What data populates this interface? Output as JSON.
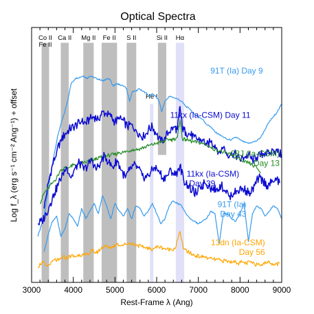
{
  "chart_data": {
    "type": "line",
    "title": "Optical Spectra",
    "xlabel": "Rest-Frame λ (Ang)",
    "ylabel": "Log f_λ (erg s⁻¹ cm⁻² Ang⁻¹) + offset",
    "xlim": [
      3000,
      9000
    ],
    "xticks": [
      "3000",
      "4000",
      "5000",
      "6000",
      "7000",
      "8000",
      "9000"
    ],
    "y_ticks_shown": false,
    "grid": false,
    "colors": {
      "sky": "#3399ee",
      "navy": "#0a0ad2",
      "green": "#228b22",
      "orange": "#ffa500",
      "grey_band": "#bebebe",
      "lavender_band": "#e0e0f8"
    },
    "bands": [
      {
        "label": "Co II",
        "label2": "Fe II",
        "x": [
          3240,
          3420
        ],
        "y_range": [
          0.0,
          0.94
        ],
        "color": "grey"
      },
      {
        "label": "Ca II",
        "x": [
          3700,
          3890
        ],
        "y_range": [
          0.0,
          0.94
        ],
        "color": "grey"
      },
      {
        "label": "Mg II",
        "x": [
          4240,
          4490
        ],
        "y_range": [
          0.0,
          0.94
        ],
        "color": "grey"
      },
      {
        "label": "Fe II",
        "x": [
          4680,
          5050
        ],
        "y_range": [
          0.0,
          0.94
        ],
        "color": "grey"
      },
      {
        "label": "S II",
        "x": [
          5280,
          5510
        ],
        "y_range": [
          0.0,
          0.94
        ],
        "color": "grey"
      },
      {
        "label": "He I",
        "x": [
          5840,
          5920
        ],
        "y_range": [
          0.0,
          0.7
        ],
        "color": "lavender"
      },
      {
        "label": "Si II",
        "x": [
          6030,
          6230
        ],
        "y_range": [
          0.5,
          0.94
        ],
        "color": "grey"
      },
      {
        "label": "Hα",
        "x": [
          6460,
          6660
        ],
        "y_range": [
          0.0,
          0.94
        ],
        "color": "lavender"
      }
    ],
    "series": [
      {
        "name": "91T (Ia) Day 9",
        "label_lines": [
          "91T (Ia) Day 9"
        ],
        "color": "sky",
        "x": [
          3150,
          3300,
          3380,
          3450,
          3550,
          3620,
          3700,
          3780,
          3860,
          3950,
          4050,
          4150,
          4250,
          4330,
          4400,
          4480,
          4560,
          4640,
          4720,
          4800,
          4880,
          4960,
          5040,
          5120,
          5200,
          5280,
          5350,
          5420,
          5500,
          5580,
          5660,
          5740,
          5820,
          5900,
          5980,
          6060,
          6120,
          6200,
          6300,
          6400,
          6500,
          6600,
          6700,
          6800,
          6900,
          7000,
          7100,
          7200,
          7300,
          7400,
          7500,
          7600,
          7700,
          7800,
          7900,
          8000,
          8100,
          8200,
          8300,
          8400,
          8500,
          8600,
          8700,
          8800,
          8900,
          9000
        ],
        "y": [
          1.3,
          2.1,
          2.9,
          3.7,
          4.6,
          5.2,
          5.7,
          6.1,
          6.6,
          7.3,
          7.5,
          7.55,
          7.6,
          7.5,
          7.6,
          7.55,
          7.5,
          7.45,
          7.4,
          7.5,
          7.45,
          7.2,
          7.3,
          7.25,
          7.2,
          7.1,
          6.6,
          7.0,
          7.0,
          7.1,
          7.0,
          6.95,
          6.8,
          6.9,
          6.8,
          6.6,
          6.2,
          6.6,
          6.8,
          6.75,
          6.7,
          6.6,
          6.4,
          6.3,
          6.1,
          6.0,
          5.9,
          5.7,
          5.6,
          5.4,
          5.3,
          5.2,
          5.1,
          5.1,
          5.2,
          5.1,
          5.0,
          4.95,
          5.0,
          5.05,
          5.2,
          5.5,
          5.8,
          6.0,
          6.2,
          6.5
        ]
      },
      {
        "name": "11kx (Ia-CSM) Day 11",
        "label_lines": [
          "11kx (Ia-CSM) Day 11"
        ],
        "color": "navy",
        "x": [
          3300,
          3400,
          3500,
          3600,
          3700,
          3800,
          3900,
          4000,
          4100,
          4200,
          4300,
          4400,
          4500,
          4600,
          4700,
          4800,
          4900,
          5000,
          5100,
          5200,
          5300,
          5400,
          5500,
          5600,
          5700,
          5800,
          5900,
          6000,
          6100,
          6200,
          6300,
          6400,
          6500,
          6560,
          6620,
          6700,
          6800,
          6900,
          7000,
          7100,
          7200,
          7300,
          7400,
          7500,
          7600,
          7700,
          7800,
          7900,
          8000,
          8100,
          8200,
          8300,
          8400,
          8500,
          8600,
          8700,
          8800,
          8900,
          9000
        ],
        "y": [
          2.4,
          3.4,
          4.1,
          4.6,
          5.1,
          5.3,
          5.5,
          5.6,
          5.7,
          5.8,
          5.75,
          5.9,
          6.0,
          5.9,
          6.2,
          6.1,
          6.0,
          5.8,
          5.9,
          5.85,
          5.6,
          5.7,
          5.5,
          5.3,
          5.2,
          5.5,
          5.6,
          5.3,
          5.0,
          5.2,
          5.4,
          5.6,
          5.5,
          6.4,
          5.5,
          5.4,
          5.3,
          5.2,
          5.1,
          5.1,
          4.9,
          5.0,
          4.9,
          4.6,
          4.8,
          4.5,
          4.6,
          4.5,
          4.3,
          4.4,
          4.5,
          4.3,
          4.4,
          4.5,
          4.6,
          4.5,
          4.7,
          4.6,
          4.5
        ]
      },
      {
        "name": "08J (Ia-CSM) Day 13",
        "label_lines": [
          "08J (Ia-CSM)",
          "Day 13"
        ],
        "color": "green",
        "x": [
          3200,
          3300,
          3400,
          3500,
          3600,
          3700,
          3800,
          3900,
          4000,
          4100,
          4200,
          4300,
          4400,
          4500,
          4600,
          4700,
          4800,
          4900,
          5000,
          5100,
          5200,
          5300,
          5400,
          5500,
          5600,
          5700,
          5800,
          5900,
          6000,
          6100,
          6200,
          6300,
          6400,
          6500,
          6560,
          6620,
          6700,
          6800,
          6900,
          7000,
          7100,
          7200,
          7300,
          7400,
          7500,
          7600,
          7700,
          7800,
          7900,
          8000,
          8100,
          8200,
          8300,
          8400,
          8500
        ],
        "y": [
          2.6,
          3.0,
          3.2,
          3.4,
          3.6,
          3.9,
          4.0,
          4.0,
          4.1,
          4.1,
          4.2,
          4.2,
          4.3,
          4.3,
          4.4,
          4.4,
          4.45,
          4.5,
          4.5,
          4.6,
          4.6,
          4.65,
          4.7,
          4.7,
          4.75,
          4.8,
          4.85,
          4.9,
          4.95,
          5.0,
          5.05,
          5.1,
          5.1,
          5.2,
          5.9,
          5.1,
          5.1,
          5.05,
          5.0,
          5.0,
          4.95,
          4.9,
          4.8,
          4.7,
          4.65,
          4.6,
          4.55,
          4.5,
          4.4,
          4.3,
          4.2,
          4.2,
          4.1,
          4.0,
          3.8
        ]
      },
      {
        "name": "11kx (Ia-CSM) Day 39",
        "label_lines": [
          "11kx (Ia-CSM)",
          "Day 39"
        ],
        "color": "navy",
        "x": [
          3150,
          3250,
          3350,
          3450,
          3550,
          3650,
          3750,
          3850,
          3950,
          4050,
          4150,
          4250,
          4350,
          4450,
          4550,
          4650,
          4750,
          4850,
          4950,
          5050,
          5150,
          5250,
          5350,
          5450,
          5550,
          5650,
          5750,
          5850,
          5950,
          6050,
          6150,
          6250,
          6350,
          6450,
          6560,
          6650,
          6750,
          6850,
          6950,
          7050,
          7150,
          7250,
          7350,
          7450,
          7550,
          7650,
          7750,
          7850,
          7950,
          8050,
          8150,
          8250,
          8350,
          8450,
          8550,
          8650,
          8750,
          8850,
          8950
        ],
        "y": [
          1.8,
          1.9,
          2.2,
          2.6,
          3.0,
          3.4,
          3.8,
          4.0,
          3.6,
          4.0,
          4.2,
          3.9,
          4.1,
          4.3,
          3.9,
          4.2,
          4.5,
          4.2,
          4.0,
          4.3,
          3.9,
          3.6,
          3.9,
          4.1,
          4.0,
          3.7,
          3.6,
          3.8,
          4.0,
          3.9,
          3.6,
          3.7,
          3.9,
          3.7,
          4.1,
          3.5,
          3.3,
          3.1,
          3.0,
          3.2,
          3.4,
          3.3,
          3.1,
          3.2,
          3.3,
          3.1,
          2.9,
          3.0,
          3.1,
          3.2,
          3.1,
          3.0,
          3.3,
          3.6,
          3.5,
          3.3,
          3.4,
          3.6,
          3.4
        ]
      },
      {
        "name": "91T (Ia) Day 43",
        "label_lines": [
          "91T (Ia)",
          "Day 43"
        ],
        "color": "sky",
        "x": [
          3300,
          3400,
          3500,
          3600,
          3700,
          3800,
          3900,
          4000,
          4100,
          4200,
          4300,
          4400,
          4500,
          4600,
          4700,
          4800,
          4900,
          5000,
          5100,
          5200,
          5300,
          5400,
          5500,
          5600,
          5700,
          5800,
          5900,
          6000,
          6100,
          6200,
          6300,
          6400,
          6500,
          6600,
          6700,
          6800,
          6900,
          7000,
          7100,
          7200,
          7300,
          7400,
          7500,
          7600,
          7700,
          7800,
          7900,
          8000,
          8100,
          8200,
          8300,
          8400,
          8500,
          8600,
          8700,
          8800,
          8900,
          9000
        ],
        "y": [
          0.7,
          1.4,
          1.9,
          2.1,
          1.3,
          1.6,
          2.2,
          2.0,
          1.7,
          2.4,
          2.0,
          2.3,
          2.6,
          2.2,
          2.9,
          2.5,
          2.0,
          2.6,
          2.3,
          2.1,
          2.4,
          2.0,
          2.5,
          2.4,
          2.1,
          2.3,
          2.6,
          2.2,
          1.8,
          2.0,
          2.5,
          2.7,
          2.6,
          2.5,
          2.2,
          2.0,
          1.9,
          1.8,
          1.9,
          2.0,
          2.3,
          2.2,
          1.0,
          2.2,
          2.2,
          2.0,
          1.9,
          2.2,
          2.6,
          1.1,
          2.2,
          2.5,
          2.4,
          2.1,
          2.3,
          2.5,
          2.4,
          2.0
        ]
      },
      {
        "name": "13dn (Ia-CSM) Day 56",
        "label_lines": [
          "13dn (Ia-CSM)",
          "Day 56"
        ],
        "color": "orange",
        "x": [
          3150,
          3250,
          3350,
          3450,
          3550,
          3650,
          3750,
          3850,
          3950,
          4050,
          4150,
          4250,
          4350,
          4450,
          4550,
          4650,
          4750,
          4850,
          4950,
          5050,
          5150,
          5250,
          5350,
          5450,
          5550,
          5650,
          5750,
          5850,
          5950,
          6050,
          6150,
          6250,
          6350,
          6450,
          6560,
          6650,
          6750,
          6850,
          6950,
          7050,
          7150,
          7250,
          7350,
          7450,
          7550,
          7650,
          7750,
          7850,
          7950,
          8050,
          8150,
          8250,
          8350,
          8450,
          8550,
          8650,
          8750,
          8850,
          8950
        ],
        "y": [
          0.1,
          0.3,
          0.15,
          0.2,
          0.4,
          0.35,
          0.5,
          0.45,
          0.55,
          0.5,
          0.6,
          0.55,
          0.6,
          0.75,
          0.65,
          0.8,
          0.95,
          0.85,
          0.9,
          1.0,
          0.95,
          1.0,
          1.05,
          1.0,
          0.95,
          0.9,
          0.85,
          0.8,
          0.85,
          0.9,
          0.85,
          0.8,
          0.8,
          0.85,
          1.5,
          0.8,
          0.7,
          0.6,
          0.55,
          0.5,
          0.5,
          0.45,
          0.4,
          0.4,
          0.35,
          0.35,
          0.3,
          0.35,
          0.25,
          0.3,
          0.25,
          0.3,
          0.2,
          0.25,
          0.2,
          0.3,
          0.25,
          0.2,
          0.25
        ]
      }
    ]
  }
}
